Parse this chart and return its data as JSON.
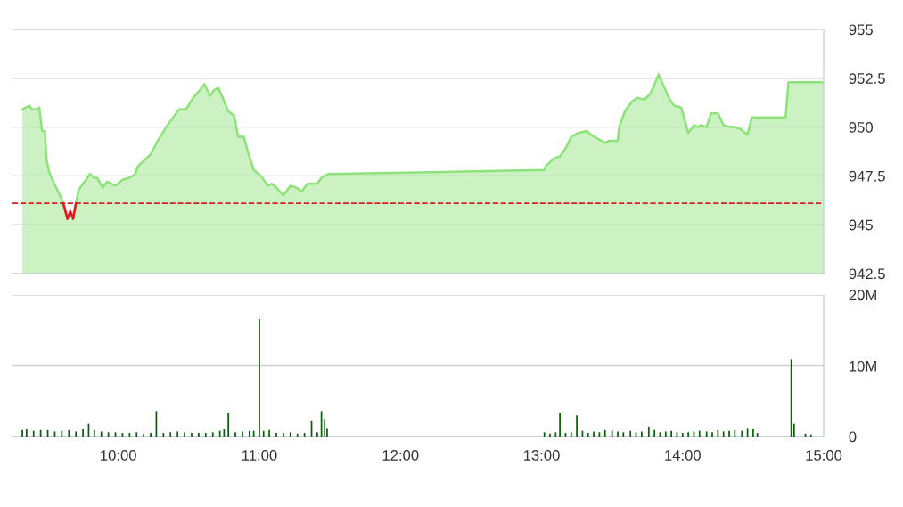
{
  "chart_data": [
    {
      "type": "area",
      "xlim": [
        9.25,
        15
      ],
      "ylim": [
        942.5,
        955
      ],
      "yticks": [
        955,
        952.5,
        950,
        947.5,
        945,
        942.5
      ],
      "grid": "y",
      "tick_labels": "y",
      "series": [
        {
          "color": "#8ee27a",
          "x": [
            9.32,
            9.37,
            9.39,
            9.42,
            9.44,
            9.46,
            9.48,
            9.49,
            9.51,
            9.54,
            9.58,
            9.61,
            9.64,
            9.66,
            9.68,
            9.7,
            9.72,
            9.75,
            9.8,
            9.83,
            9.85,
            9.89,
            9.92,
            9.98,
            10.03,
            10.08,
            10.12,
            10.14,
            10.2,
            10.23,
            10.28,
            10.34,
            10.38,
            10.43,
            10.48,
            10.53,
            10.58,
            10.61,
            10.65,
            10.68,
            10.71,
            10.74,
            10.78,
            10.82,
            10.85,
            10.89,
            10.92,
            10.96,
            11.01,
            11.06,
            11.09,
            11.12,
            11.17,
            11.22,
            11.26,
            11.3,
            11.34,
            11.41,
            11.44,
            11.49,
            12.32,
            13.02,
            13.03,
            13.09,
            13.13,
            13.17,
            13.21,
            13.26,
            13.32,
            13.35,
            13.4,
            13.45,
            13.48,
            13.54,
            13.55,
            13.59,
            13.64,
            13.68,
            13.73,
            13.77,
            13.79,
            13.83,
            13.86,
            13.91,
            13.94,
            13.99,
            14.04,
            14.08,
            14.11,
            14.13,
            14.17,
            14.2,
            14.25,
            14.29,
            14.34,
            14.37,
            14.41,
            14.46,
            14.49,
            14.73,
            14.75,
            15.0
          ],
          "values": [
            950.9,
            951.1,
            950.9,
            950.9,
            951.0,
            949.8,
            949.8,
            948.4,
            947.7,
            947.2,
            946.6,
            946.1,
            945.3,
            945.7,
            945.3,
            946.1,
            946.8,
            947.1,
            947.6,
            947.4,
            947.4,
            946.9,
            947.2,
            947.0,
            947.3,
            947.4,
            947.6,
            948.0,
            948.4,
            948.6,
            949.3,
            950.0,
            950.4,
            950.9,
            950.9,
            951.5,
            951.9,
            952.2,
            951.6,
            951.9,
            952.0,
            951.5,
            950.8,
            950.6,
            949.5,
            949.5,
            948.7,
            947.8,
            947.5,
            947.0,
            947.1,
            946.9,
            946.5,
            947.0,
            946.9,
            946.7,
            947.1,
            947.1,
            947.4,
            947.6,
            947.7,
            947.8,
            948.0,
            948.4,
            948.5,
            948.9,
            949.5,
            949.7,
            949.8,
            949.6,
            949.4,
            949.2,
            949.3,
            949.3,
            950.0,
            950.8,
            951.3,
            951.5,
            951.4,
            951.7,
            952.0,
            952.7,
            952.2,
            951.4,
            951.1,
            951.0,
            949.7,
            950.1,
            950.0,
            950.1,
            950.0,
            950.7,
            950.7,
            950.1,
            950.0,
            950.0,
            949.9,
            949.6,
            950.5,
            950.5,
            952.3,
            952.3
          ]
        },
        {
          "type": "line",
          "color": "#e8141c",
          "x": [
            9.61,
            9.64,
            9.66,
            9.68,
            9.7
          ],
          "values": [
            946.1,
            945.3,
            945.7,
            945.3,
            946.1
          ]
        }
      ],
      "ref_lines": [
        {
          "axis": "y",
          "value": 946.1,
          "color": "#d62020",
          "line_style": "dashed"
        }
      ]
    },
    {
      "type": "bar",
      "xlim": [
        9.25,
        15
      ],
      "xticks": [
        {
          "value": 10,
          "label": "10:00"
        },
        {
          "value": 11,
          "label": "11:00"
        },
        {
          "value": 12,
          "label": "12:00"
        },
        {
          "value": 13,
          "label": "13:00"
        },
        {
          "value": 14,
          "label": "14:00"
        },
        {
          "value": 15,
          "label": "15:00"
        }
      ],
      "ylim": [
        0,
        20
      ],
      "yticks": [
        0,
        {
          "value": 10,
          "label": "10M"
        },
        {
          "value": 20,
          "label": "20M"
        }
      ],
      "grid": "y",
      "series": [
        {
          "color": "#0b5e0b",
          "x": [
            9.32,
            9.35,
            9.4,
            9.45,
            9.5,
            9.55,
            9.6,
            9.65,
            9.7,
            9.75,
            9.79,
            9.83,
            9.88,
            9.93,
            9.98,
            10.03,
            10.08,
            10.13,
            10.18,
            10.23,
            10.27,
            10.32,
            10.37,
            10.42,
            10.47,
            10.52,
            10.57,
            10.62,
            10.67,
            10.72,
            10.75,
            10.78,
            10.83,
            10.88,
            10.93,
            10.96,
            11.0,
            11.03,
            11.07,
            11.12,
            11.17,
            11.22,
            11.27,
            11.32,
            11.37,
            11.41,
            11.44,
            11.46,
            11.48,
            13.02,
            13.06,
            13.1,
            13.13,
            13.17,
            13.21,
            13.25,
            13.29,
            13.33,
            13.37,
            13.41,
            13.45,
            13.5,
            13.54,
            13.58,
            13.63,
            13.67,
            13.71,
            13.76,
            13.8,
            13.84,
            13.88,
            13.92,
            13.96,
            14.0,
            14.04,
            14.08,
            14.12,
            14.17,
            14.21,
            14.25,
            14.29,
            14.33,
            14.37,
            14.42,
            14.46,
            14.5,
            14.53,
            14.77,
            14.79,
            14.87,
            14.91
          ],
          "values": [
            0.9,
            1.0,
            0.8,
            0.9,
            0.9,
            0.7,
            0.8,
            0.9,
            0.7,
            1.0,
            1.8,
            0.9,
            0.7,
            0.6,
            0.6,
            0.5,
            0.5,
            0.6,
            0.4,
            0.5,
            3.6,
            0.5,
            0.6,
            0.7,
            0.6,
            0.5,
            0.5,
            0.5,
            0.6,
            0.8,
            1.0,
            3.4,
            0.6,
            0.7,
            0.8,
            0.8,
            16.6,
            0.8,
            0.9,
            0.5,
            0.5,
            0.6,
            0.4,
            0.5,
            2.3,
            0.6,
            3.6,
            2.5,
            1.2,
            0.6,
            0.4,
            0.6,
            3.3,
            0.5,
            0.6,
            3.0,
            0.8,
            0.5,
            0.7,
            0.6,
            0.9,
            0.8,
            0.7,
            0.6,
            0.8,
            0.6,
            0.7,
            1.4,
            0.9,
            0.6,
            0.7,
            0.8,
            0.6,
            0.5,
            0.6,
            0.7,
            0.8,
            0.7,
            0.6,
            0.9,
            0.7,
            0.8,
            0.9,
            0.8,
            1.2,
            1.1,
            0.5,
            10.9,
            1.8,
            0.4,
            0.3
          ]
        }
      ]
    }
  ]
}
